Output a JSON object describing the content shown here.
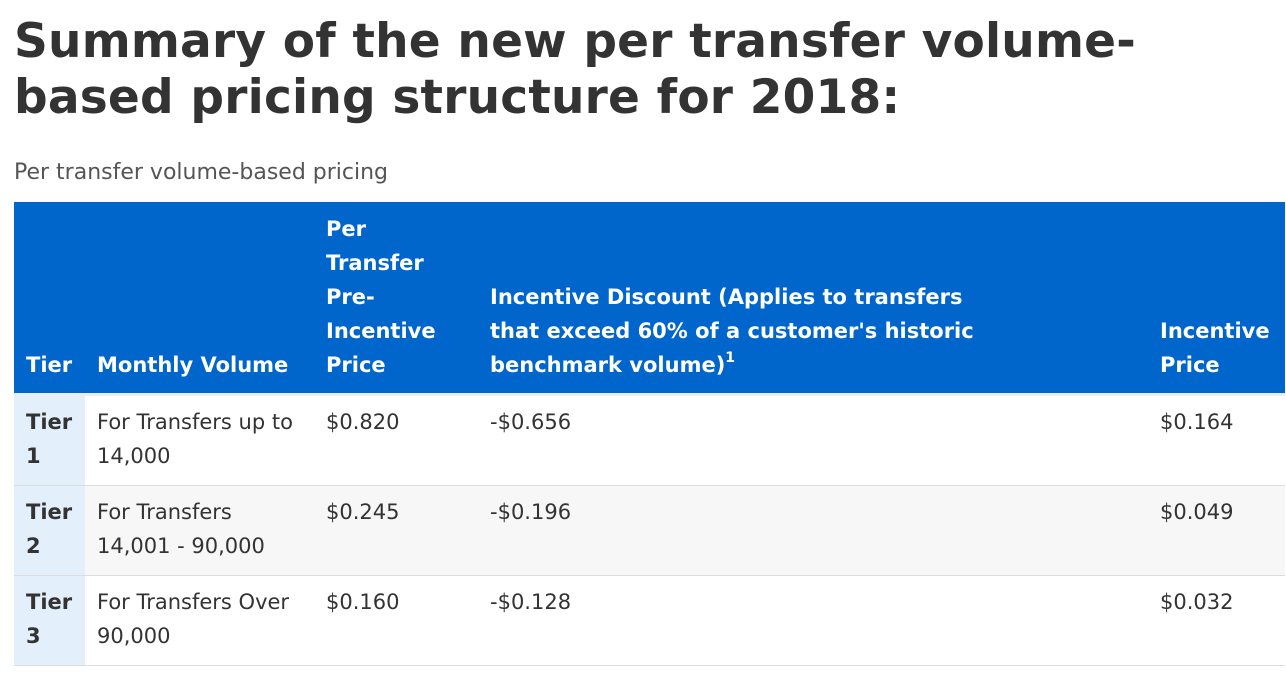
{
  "title": "Summary of the new per transfer volume-based pricing structure for 2018:",
  "caption": "Per transfer volume-based pricing",
  "table": {
    "headers": {
      "tier": "Tier",
      "monthly_volume": "Monthly Volume",
      "pre_incentive": "Per Transfer Pre-Incentive Price",
      "discount": "Incentive Discount (Applies to transfers that exceed 60% of a customer's historic benchmark volume)",
      "discount_footnote": "1",
      "incentive_price": "Incentive Price"
    },
    "rows": [
      {
        "tier": "Tier 1",
        "volume": "For Transfers up to 14,000",
        "pre_incentive": "$0.820",
        "discount": "-$0.656",
        "incentive_price": "$0.164"
      },
      {
        "tier": "Tier 2",
        "volume": "For Transfers 14,001 - 90,000",
        "pre_incentive": "$0.245",
        "discount": "-$0.196",
        "incentive_price": "$0.049"
      },
      {
        "tier": "Tier 3",
        "volume": "For Transfers Over 90,000",
        "pre_incentive": "$0.160",
        "discount": "-$0.128",
        "incentive_price": "$0.032"
      }
    ]
  },
  "colors": {
    "header_bg": "#0066cc",
    "tier_cell_bg": "#e3f0fc",
    "text": "#333333"
  }
}
